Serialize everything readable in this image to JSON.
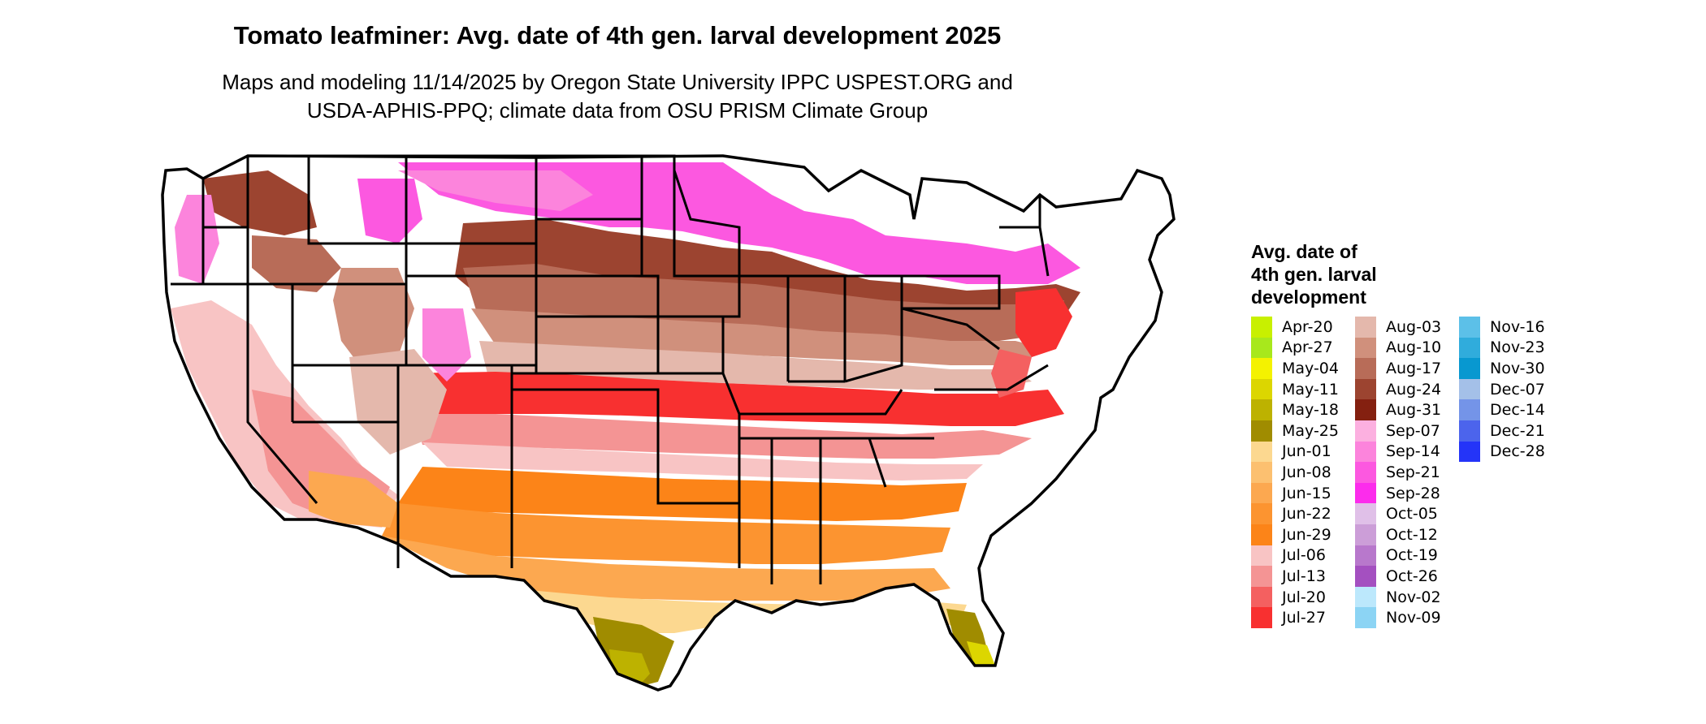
{
  "title": "Tomato leafminer: Avg. date of 4th gen. larval development 2025",
  "subtitle_line1": "Maps and modeling 11/14/2025 by Oregon State University IPPC USPEST.ORG and",
  "subtitle_line2": "USDA-APHIS-PPQ; climate data from OSU PRISM Climate Group",
  "legend": {
    "title_line1": "Avg. date of",
    "title_line2": "4th gen. larval",
    "title_line3": "development",
    "columns": [
      [
        {
          "label": "Apr-20",
          "color": "#c8f000"
        },
        {
          "label": "Apr-27",
          "color": "#a8e81c"
        },
        {
          "label": "May-04",
          "color": "#f4f200"
        },
        {
          "label": "May-11",
          "color": "#dcd600"
        },
        {
          "label": "May-18",
          "color": "#bdb200"
        },
        {
          "label": "May-25",
          "color": "#a08c00"
        },
        {
          "label": "Jun-01",
          "color": "#fcd890"
        },
        {
          "label": "Jun-08",
          "color": "#fcc070"
        },
        {
          "label": "Jun-15",
          "color": "#fca850"
        },
        {
          "label": "Jun-22",
          "color": "#fc9430"
        },
        {
          "label": "Jun-29",
          "color": "#fc8418"
        },
        {
          "label": "Jul-06",
          "color": "#f8c4c4"
        },
        {
          "label": "Jul-13",
          "color": "#f49494"
        },
        {
          "label": "Jul-20",
          "color": "#f46060"
        },
        {
          "label": "Jul-27",
          "color": "#f83030"
        }
      ],
      [
        {
          "label": "Aug-03",
          "color": "#e4b8ac"
        },
        {
          "label": "Aug-10",
          "color": "#d0907c"
        },
        {
          "label": "Aug-17",
          "color": "#b86c58"
        },
        {
          "label": "Aug-24",
          "color": "#9c4430"
        },
        {
          "label": "Aug-31",
          "color": "#842010"
        },
        {
          "label": "Sep-07",
          "color": "#fcb0e0"
        },
        {
          "label": "Sep-14",
          "color": "#fc84dc"
        },
        {
          "label": "Sep-21",
          "color": "#fc58e0"
        },
        {
          "label": "Sep-28",
          "color": "#fc2cec"
        },
        {
          "label": "Oct-05",
          "color": "#e0c0e8"
        },
        {
          "label": "Oct-12",
          "color": "#cc9ed8"
        },
        {
          "label": "Oct-19",
          "color": "#b878cc"
        },
        {
          "label": "Oct-26",
          "color": "#a450c0"
        },
        {
          "label": "Nov-02",
          "color": "#bce8fc"
        },
        {
          "label": "Nov-09",
          "color": "#8cd4f4"
        }
      ],
      [
        {
          "label": "Nov-16",
          "color": "#5cc0e8"
        },
        {
          "label": "Nov-23",
          "color": "#30acdc"
        },
        {
          "label": "Nov-30",
          "color": "#0898d0"
        },
        {
          "label": "Dec-07",
          "color": "#a4c0e8"
        },
        {
          "label": "Dec-14",
          "color": "#7494e8"
        },
        {
          "label": "Dec-21",
          "color": "#4c64ec"
        },
        {
          "label": "Dec-28",
          "color": "#2434f8"
        }
      ]
    ]
  }
}
